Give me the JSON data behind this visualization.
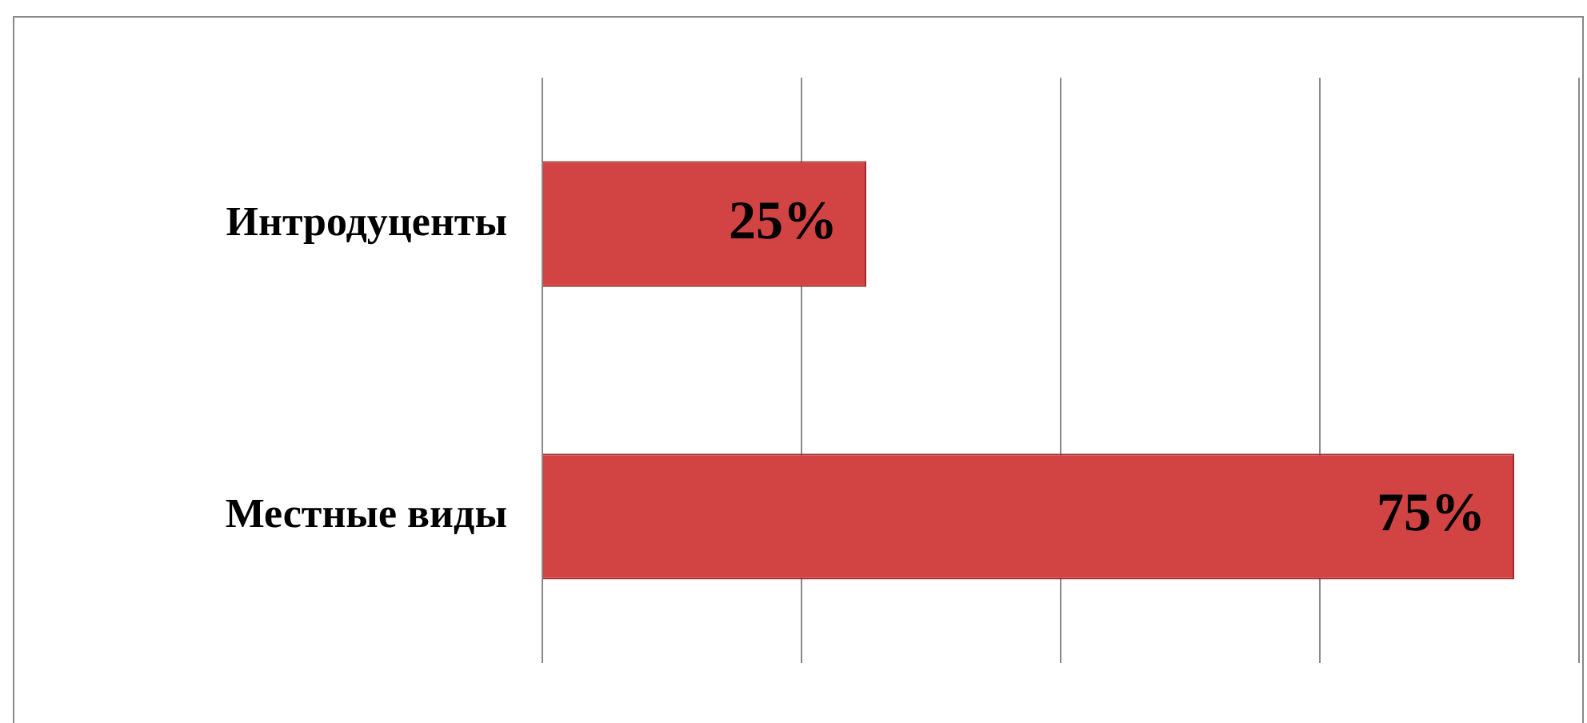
{
  "chart_data": {
    "type": "bar",
    "orientation": "horizontal",
    "categories": [
      "Интродуценты",
      "Местные виды"
    ],
    "values": [
      25,
      75
    ],
    "color": "#d24343",
    "xlim": [
      0,
      80
    ],
    "xticks": [
      {
        "value": 0,
        "label": null
      },
      {
        "value": 20,
        "label": null
      },
      {
        "value": 40,
        "label": null
      },
      {
        "value": 60,
        "label": null
      },
      {
        "value": 80,
        "label": null
      }
    ],
    "value_labels": [
      "25%",
      "75%"
    ],
    "grid": "x",
    "tick_labels": "y",
    "legend": false
  }
}
